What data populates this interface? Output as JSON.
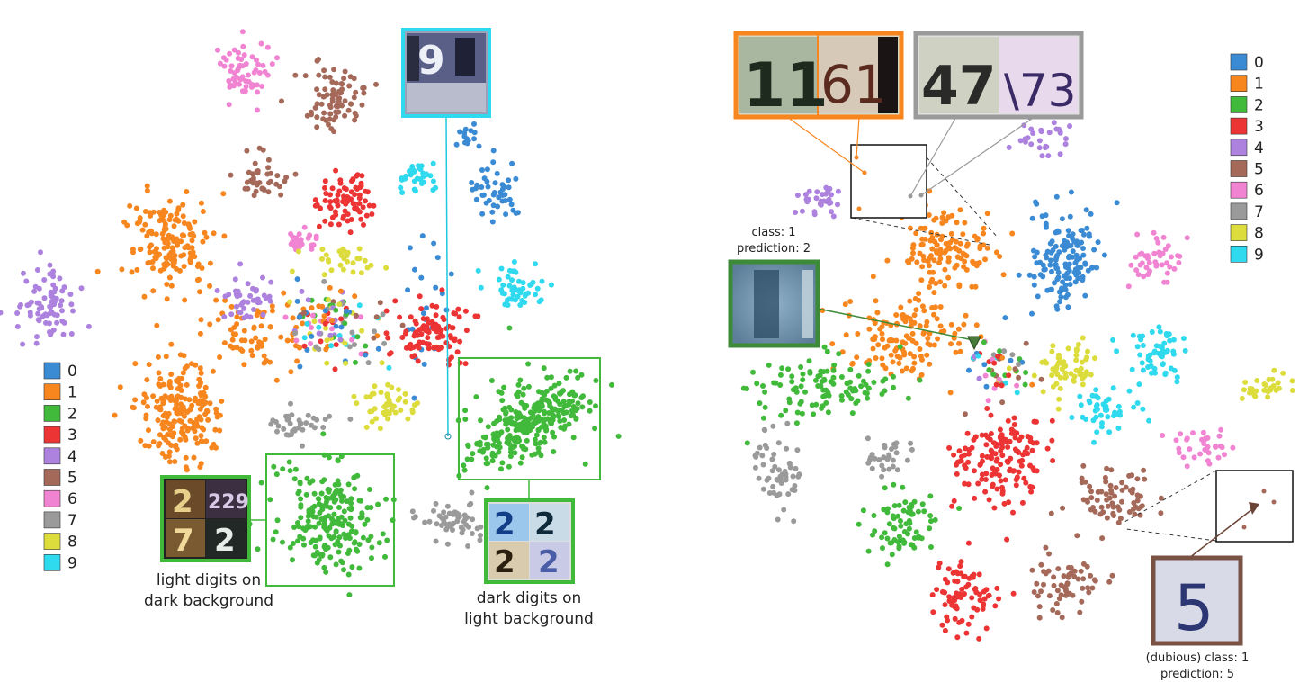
{
  "colors": {
    "0": "#3a8bd4",
    "1": "#f7861f",
    "2": "#41b93b",
    "3": "#ec3434",
    "4": "#ad82de",
    "5": "#a5695a",
    "6": "#f184d2",
    "7": "#9a9a9a",
    "8": "#dcdc3c",
    "9": "#2fd9ee"
  },
  "chart_data": [
    {
      "type": "scatter",
      "title": "",
      "legend": [
        "0",
        "1",
        "2",
        "3",
        "4",
        "5",
        "6",
        "7",
        "8",
        "9"
      ],
      "legend_position": "left",
      "series": [
        {
          "name": "0",
          "clusters": [
            [
              553,
              212,
              28,
              34,
              45
            ],
            [
              522,
              152,
              14,
              14,
              14
            ],
            [
              470,
              330,
              30,
              90,
              22
            ]
          ]
        },
        {
          "name": "1",
          "clusters": [
            [
              187,
              270,
              45,
              55,
              160
            ],
            [
              200,
              455,
              50,
              55,
              200
            ],
            [
              290,
              375,
              60,
              40,
              70
            ]
          ]
        },
        {
          "name": "2",
          "clusters": [
            [
              585,
              465,
              65,
              50,
              130
            ],
            [
              365,
              575,
              60,
              65,
              110
            ]
          ]
        },
        {
          "name": "3",
          "clusters": [
            [
              380,
              223,
              30,
              30,
              80
            ],
            [
              480,
              368,
              45,
              35,
              100
            ]
          ]
        },
        {
          "name": "4",
          "clusters": [
            [
              53,
              340,
              35,
              38,
              80
            ],
            [
              275,
              330,
              30,
              28,
              40
            ]
          ]
        },
        {
          "name": "5",
          "clusters": [
            [
              375,
              110,
              33,
              30,
              80
            ],
            [
              290,
              198,
              28,
              28,
              40
            ]
          ]
        },
        {
          "name": "6",
          "clusters": [
            [
              270,
              77,
              28,
              35,
              60
            ],
            [
              335,
              270,
              20,
              14,
              25
            ]
          ]
        },
        {
          "name": "7",
          "clusters": [
            [
              505,
              575,
              35,
              22,
              55
            ],
            [
              330,
              470,
              40,
              20,
              35
            ]
          ]
        },
        {
          "name": "8",
          "clusters": [
            [
              430,
              450,
              30,
              20,
              45
            ],
            [
              385,
              290,
              40,
              18,
              30
            ]
          ]
        },
        {
          "name": "9",
          "clusters": [
            [
              463,
              198,
              20,
              18,
              35
            ],
            [
              570,
              320,
              30,
              25,
              50
            ]
          ]
        }
      ],
      "mixed_center": [
        370,
        360,
        55,
        55,
        140
      ],
      "annotations": [
        "light digits on",
        "dark background",
        "dark digits on",
        "light background"
      ]
    },
    {
      "type": "scatter",
      "title": "",
      "legend": [
        "0",
        "1",
        "2",
        "3",
        "4",
        "5",
        "6",
        "7",
        "8",
        "9"
      ],
      "legend_position": "top-right",
      "series": [
        {
          "name": "0",
          "clusters": [
            [
              1185,
              290,
              40,
              60,
              140
            ]
          ]
        },
        {
          "name": "1",
          "clusters": [
            [
              1050,
              280,
              55,
              50,
              130
            ],
            [
              1005,
              375,
              65,
              45,
              130
            ]
          ]
        },
        {
          "name": "2",
          "clusters": [
            [
              910,
              430,
              80,
              35,
              110
            ],
            [
              1000,
              585,
              40,
              40,
              75
            ]
          ]
        },
        {
          "name": "3",
          "clusters": [
            [
              1110,
              510,
              50,
              50,
              150
            ],
            [
              1075,
              665,
              40,
              40,
              80
            ]
          ]
        },
        {
          "name": "4",
          "clusters": [
            [
              912,
              222,
              28,
              20,
              30
            ],
            [
              1155,
              155,
              28,
              25,
              30
            ]
          ]
        },
        {
          "name": "5",
          "clusters": [
            [
              1235,
              555,
              45,
              35,
              70
            ],
            [
              1185,
              650,
              40,
              35,
              60
            ]
          ]
        },
        {
          "name": "6",
          "clusters": [
            [
              1285,
              285,
              30,
              30,
              45
            ],
            [
              1335,
              495,
              30,
              25,
              35
            ]
          ]
        },
        {
          "name": "7",
          "clusters": [
            [
              870,
              525,
              30,
              40,
              55
            ],
            [
              990,
              505,
              30,
              20,
              30
            ]
          ]
        },
        {
          "name": "8",
          "clusters": [
            [
              1185,
              405,
              40,
              30,
              60
            ],
            [
              1405,
              430,
              28,
              20,
              30
            ]
          ]
        },
        {
          "name": "9",
          "clusters": [
            [
              1285,
              395,
              35,
              30,
              55
            ],
            [
              1225,
              460,
              35,
              25,
              45
            ]
          ]
        }
      ],
      "mixed_center": [
        1110,
        410,
        35,
        35,
        60
      ],
      "annotations": [
        "class: 1",
        "prediction: 2",
        "(dubious) class: 1",
        "prediction: 5"
      ]
    }
  ]
}
